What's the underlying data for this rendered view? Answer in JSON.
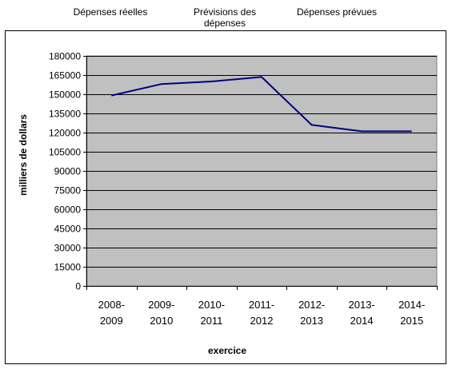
{
  "header_labels": {
    "actual": "Dépenses réelles",
    "forecast": "Prévisions des\ndépenses",
    "planned": "Dépenses prévues"
  },
  "chart_data": {
    "type": "line",
    "title": "",
    "xlabel": "exercice",
    "ylabel": "milliers de dollars",
    "categories": [
      "2008-\n2009",
      "2009-\n2010",
      "2010-\n2011",
      "2011-\n2012",
      "2012-\n2013",
      "2013-\n2014",
      "2014-\n2015"
    ],
    "series": [
      {
        "values": [
          149000,
          158000,
          160000,
          163500,
          126000,
          121000,
          121000
        ]
      }
    ],
    "ylim": [
      0,
      180000
    ],
    "yticks": [
      "0",
      "15000",
      "30000",
      "45000",
      "60000",
      "75000",
      "90000",
      "105000",
      "120000",
      "135000",
      "150000",
      "165000",
      "180000"
    ],
    "grid": true,
    "legend": "none",
    "colors": {
      "plot_background": "#c0c0c0",
      "line": "#000080",
      "grid": "#000000"
    }
  }
}
